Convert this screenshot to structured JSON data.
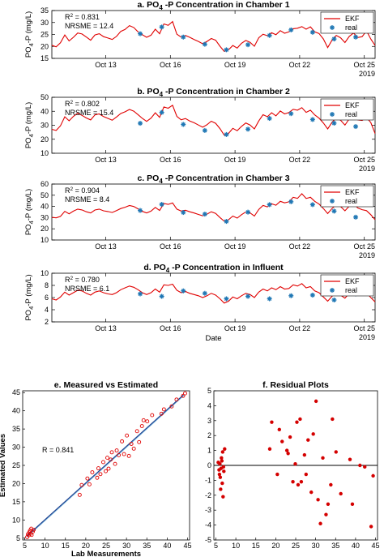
{
  "chart_data": [
    {
      "type": "line",
      "title_prefix": "a. PO",
      "title_sub": "4",
      "title_suffix": " -P Concentration in Chamber 1",
      "ylabel_prefix": "PO",
      "ylabel_sub": "4",
      "ylabel_suffix": "-P (mg/L)",
      "ylim": [
        15,
        35
      ],
      "yticks": [
        "15",
        "20",
        "25",
        "30",
        "35"
      ],
      "x_range_days": [
        10.5,
        25.5
      ],
      "x_tick_days": [
        13,
        16,
        19,
        22,
        25
      ],
      "xticks": [
        "Oct 13",
        "Oct 16",
        "Oct 19",
        "Oct 22",
        "Oct 25"
      ],
      "year_label": "2019",
      "r2_label": "R",
      "r2_sup": "2",
      "r2_text": " = 0.831",
      "error_label": "NRSME = 12.4",
      "legend": [
        "EKF",
        "real"
      ],
      "line_x": [
        10.5,
        10.7,
        10.9,
        11.1,
        11.3,
        11.5,
        11.7,
        11.9,
        12.1,
        12.3,
        12.5,
        12.7,
        12.9,
        13.1,
        13.3,
        13.5,
        13.7,
        13.9,
        14.1,
        14.3,
        14.5,
        14.7,
        14.9,
        15.1,
        15.3,
        15.5,
        15.7,
        15.9,
        16.1,
        16.3,
        16.5,
        16.7,
        16.9,
        17.1,
        17.3,
        17.5,
        17.7,
        17.9,
        18.1,
        18.3,
        18.5,
        18.7,
        18.9,
        19.1,
        19.3,
        19.5,
        19.7,
        19.9,
        20.1,
        20.3,
        20.5,
        20.7,
        20.9,
        21.1,
        21.3,
        21.5,
        21.7,
        21.9,
        22.1,
        22.3,
        22.5,
        22.7,
        22.9,
        23.1,
        23.3,
        23.5,
        23.7,
        23.9,
        24.1,
        24.3,
        24.5,
        24.7,
        24.9,
        25.1,
        25.3,
        25.5
      ],
      "line_y": [
        20.5,
        19.8,
        21.5,
        24.8,
        22.3,
        23.8,
        25.6,
        25.2,
        23.9,
        22.6,
        24.8,
        25.3,
        24.1,
        23.5,
        22.9,
        24.2,
        26.3,
        27.1,
        28.7,
        27.9,
        26.1,
        24.9,
        23.8,
        24.7,
        27.2,
        25.3,
        29.4,
        28.8,
        30.4,
        25.1,
        23.9,
        24.6,
        23.8,
        22.9,
        22.1,
        21.1,
        22.1,
        23.3,
        22.6,
        20.1,
        17.9,
        18.6,
        20.4,
        19.3,
        21.3,
        22.5,
        21.7,
        20.1,
        23.6,
        25.1,
        24.5,
        25.7,
        24.9,
        26.6,
        25.5,
        26.1,
        27.4,
        27.6,
        28.3,
        27.2,
        28.2,
        26.1,
        25.4,
        23.1,
        19.5,
        22.6,
        24.6,
        23.6,
        21.6,
        24.2,
        25.6,
        23.7,
        24.1,
        26.5,
        23.1,
        20.4
      ],
      "real_x": [
        14.6,
        15.6,
        16.6,
        17.6,
        18.6,
        19.6,
        20.6,
        21.6,
        22.6,
        23.6,
        24.6
      ],
      "real_y": [
        25.3,
        28.1,
        23.9,
        20.9,
        18.6,
        20.7,
        24.6,
        26.9,
        25.9,
        23.1,
        23.9
      ]
    },
    {
      "type": "line",
      "title_prefix": "b. PO",
      "title_sub": "4",
      "title_suffix": " -P Concentration in Chamber 2",
      "ylabel_prefix": "PO",
      "ylabel_sub": "4",
      "ylabel_suffix": "-P (mg/L)",
      "ylim": [
        10,
        50
      ],
      "yticks": [
        "10",
        "20",
        "30",
        "40",
        "50"
      ],
      "x_range_days": [
        10.5,
        25.5
      ],
      "x_tick_days": [
        13,
        16,
        19,
        22,
        25
      ],
      "xticks": [
        "Oct 13",
        "Oct 16",
        "Oct 19",
        "Oct 22",
        "Oct 25"
      ],
      "year_label": "2019",
      "r2_label": "R",
      "r2_sup": "2",
      "r2_text": " = 0.802",
      "error_label": "NRSME = 15.4",
      "legend": [
        "EKF",
        "real"
      ],
      "line_x": [
        10.5,
        10.7,
        10.9,
        11.1,
        11.3,
        11.5,
        11.7,
        11.9,
        12.1,
        12.3,
        12.5,
        12.7,
        12.9,
        13.1,
        13.3,
        13.5,
        13.7,
        13.9,
        14.1,
        14.3,
        14.5,
        14.7,
        14.9,
        15.1,
        15.3,
        15.5,
        15.7,
        15.9,
        16.1,
        16.3,
        16.5,
        16.7,
        16.9,
        17.1,
        17.3,
        17.5,
        17.7,
        17.9,
        18.1,
        18.3,
        18.5,
        18.7,
        18.9,
        19.1,
        19.3,
        19.5,
        19.7,
        19.9,
        20.1,
        20.3,
        20.5,
        20.7,
        20.9,
        21.1,
        21.3,
        21.5,
        21.7,
        21.9,
        22.1,
        22.3,
        22.5,
        22.7,
        22.9,
        23.1,
        23.3,
        23.5,
        23.7,
        23.9,
        24.1,
        24.3,
        24.5,
        24.7,
        24.9,
        25.1,
        25.3,
        25.5
      ],
      "line_y": [
        27.1,
        26.3,
        29.6,
        36.1,
        33.2,
        36.4,
        38.6,
        37.1,
        35.2,
        33.8,
        37.4,
        38.1,
        36.2,
        34.9,
        33.6,
        35.9,
        38.4,
        39.6,
        41.3,
        40.1,
        37.6,
        34.9,
        32.8,
        35.1,
        38.9,
        35.6,
        43.1,
        42.2,
        44.3,
        36.4,
        33.9,
        34.8,
        33.1,
        31.8,
        30.2,
        28.6,
        30.4,
        32.9,
        31.4,
        27.6,
        22.9,
        24.2,
        27.8,
        26.1,
        29.2,
        31.6,
        30.2,
        27.4,
        33.1,
        37.6,
        36.1,
        38.9,
        36.7,
        40.2,
        38.1,
        39.1,
        41.4,
        40.8,
        42.6,
        39.2,
        40.8,
        37.4,
        35.1,
        31.6,
        27.4,
        32.1,
        35.4,
        33.6,
        30.1,
        34.6,
        37.1,
        33.9,
        33.4,
        35.6,
        31.9,
        24.1
      ],
      "real_x": [
        14.6,
        15.6,
        16.6,
        17.6,
        18.6,
        19.6,
        20.6,
        21.6,
        22.6,
        23.6,
        24.6
      ],
      "real_y": [
        31.4,
        39.2,
        30.6,
        26.3,
        23.4,
        27.2,
        34.9,
        38.3,
        34.1,
        31.5,
        29.1
      ]
    },
    {
      "type": "line",
      "title_prefix": "c. PO",
      "title_sub": "4",
      "title_suffix": " -P Concentration in Chamber 3",
      "ylabel_prefix": "PO",
      "ylabel_sub": "4",
      "ylabel_suffix": "-P (mg/L)",
      "ylim": [
        10,
        60
      ],
      "yticks": [
        "10",
        "20",
        "30",
        "40",
        "50",
        "60"
      ],
      "x_range_days": [
        10.5,
        25.5
      ],
      "x_tick_days": [
        13,
        16,
        19,
        22,
        25
      ],
      "xticks": [
        "Oct 13",
        "Oct 16",
        "Oct 19",
        "Oct 22",
        "Oct 25"
      ],
      "year_label": "2019",
      "r2_label": "R",
      "r2_sup": "2",
      "r2_text": " = 0.904",
      "error_label": "NRSME = 8.4",
      "legend": [
        "EKF",
        "real"
      ],
      "line_x": [
        10.5,
        10.7,
        10.9,
        11.1,
        11.3,
        11.5,
        11.7,
        11.9,
        12.1,
        12.3,
        12.5,
        12.7,
        12.9,
        13.1,
        13.3,
        13.5,
        13.7,
        13.9,
        14.1,
        14.3,
        14.5,
        14.7,
        14.9,
        15.1,
        15.3,
        15.5,
        15.7,
        15.9,
        16.1,
        16.3,
        16.5,
        16.7,
        16.9,
        17.1,
        17.3,
        17.5,
        17.7,
        17.9,
        18.1,
        18.3,
        18.5,
        18.7,
        18.9,
        19.1,
        19.3,
        19.5,
        19.7,
        19.9,
        20.1,
        20.3,
        20.5,
        20.7,
        20.9,
        21.1,
        21.3,
        21.5,
        21.7,
        21.9,
        22.1,
        22.3,
        22.5,
        22.7,
        22.9,
        23.1,
        23.3,
        23.5,
        23.7,
        23.9,
        24.1,
        24.3,
        24.5,
        24.7,
        24.9,
        25.1,
        25.3,
        25.5
      ],
      "line_y": [
        30.2,
        29.8,
        31.1,
        35.6,
        33.4,
        35.8,
        37.6,
        36.9,
        35.2,
        34.1,
        36.8,
        37.6,
        36.1,
        35.4,
        34.6,
        36.2,
        38.1,
        39.3,
        40.8,
        39.9,
        37.8,
        35.6,
        34.2,
        35.8,
        39.1,
        36.4,
        42.6,
        41.8,
        43.1,
        37.6,
        35.9,
        36.6,
        35.2,
        34.1,
        32.8,
        31.6,
        33.1,
        35.2,
        33.8,
        30.1,
        26.8,
        28.1,
        31.4,
        29.6,
        32.6,
        35.1,
        34.2,
        31.4,
        37.3,
        40.9,
        39.6,
        42.3,
        41.1,
        44.6,
        43.2,
        44.1,
        48.1,
        47.2,
        51.4,
        47.1,
        48.2,
        44.6,
        42.1,
        38.1,
        33.6,
        38.1,
        41.6,
        39.9,
        36.1,
        40.2,
        42.3,
        38.6,
        37.1,
        36.2,
        32.6,
        28.1
      ],
      "real_x": [
        14.6,
        15.6,
        16.6,
        17.6,
        18.6,
        19.6,
        20.6,
        21.6,
        22.6,
        23.6,
        24.6
      ],
      "real_y": [
        36.4,
        41.8,
        34.6,
        33.1,
        26.6,
        34.9,
        41.6,
        44.2,
        41.6,
        35.8,
        30.4
      ]
    },
    {
      "type": "line",
      "title_prefix": "d. PO",
      "title_sub": "4",
      "title_suffix": " -P Concentration in Influent",
      "ylabel_prefix": "PO",
      "ylabel_sub": "4",
      "ylabel_suffix": "-P (mg/L)",
      "ylim": [
        2,
        10
      ],
      "yticks": [
        "2",
        "4",
        "6",
        "8",
        "10"
      ],
      "x_range_days": [
        10.5,
        25.5
      ],
      "x_tick_days": [
        13,
        16,
        19,
        22,
        25
      ],
      "xticks": [
        "Oct 13",
        "Oct 16",
        "Oct 19",
        "Oct 22",
        "Oct 25"
      ],
      "year_label": "2019",
      "xlabel": "Date",
      "r2_label": "R",
      "r2_sup": "2",
      "r2_text": " = 0.780",
      "error_label": "NRSME = 6.1",
      "legend": [
        "EKF",
        "real"
      ],
      "line_x": [
        10.5,
        10.7,
        10.9,
        11.1,
        11.3,
        11.5,
        11.7,
        11.9,
        12.1,
        12.3,
        12.5,
        12.7,
        12.9,
        13.1,
        13.3,
        13.5,
        13.7,
        13.9,
        14.1,
        14.3,
        14.5,
        14.7,
        14.9,
        15.1,
        15.3,
        15.5,
        15.7,
        15.9,
        16.1,
        16.3,
        16.5,
        16.7,
        16.9,
        17.1,
        17.3,
        17.5,
        17.7,
        17.9,
        18.1,
        18.3,
        18.5,
        18.7,
        18.9,
        19.1,
        19.3,
        19.5,
        19.7,
        19.9,
        20.1,
        20.3,
        20.5,
        20.7,
        20.9,
        21.1,
        21.3,
        21.5,
        21.7,
        21.9,
        22.1,
        22.3,
        22.5,
        22.7,
        22.9,
        23.1,
        23.3,
        23.5,
        23.7,
        23.9,
        24.1,
        24.3,
        24.5,
        24.7,
        24.9,
        25.1,
        25.3,
        25.5
      ],
      "line_y": [
        5.8,
        5.6,
        6.1,
        6.9,
        6.4,
        6.8,
        7.2,
        7.1,
        6.7,
        6.4,
        6.9,
        7.1,
        6.8,
        6.6,
        6.5,
        6.8,
        7.3,
        7.6,
        7.9,
        7.7,
        7.3,
        6.8,
        6.5,
        6.8,
        7.4,
        6.9,
        8.1,
        8.0,
        8.2,
        7.2,
        6.8,
        7.0,
        6.7,
        6.5,
        6.3,
        6.0,
        6.3,
        6.7,
        6.4,
        5.8,
        5.1,
        5.4,
        6.1,
        5.8,
        6.3,
        6.7,
        6.5,
        6.0,
        6.9,
        7.4,
        7.1,
        7.6,
        7.3,
        7.8,
        7.4,
        7.5,
        8.1,
        7.9,
        8.3,
        7.6,
        7.8,
        7.1,
        6.8,
        6.1,
        5.4,
        6.2,
        6.8,
        6.4,
        5.9,
        6.7,
        7.1,
        6.6,
        6.5,
        6.8,
        6.0,
        5.3
      ],
      "real_x": [
        14.6,
        15.6,
        16.6,
        17.6,
        18.6,
        19.6,
        20.6,
        21.6,
        22.6,
        23.6,
        24.6
      ],
      "real_y": [
        6.6,
        6.2,
        7.1,
        6.7,
        5.8,
        6.2,
        5.8,
        6.3,
        6.4,
        5.6,
        6.6
      ]
    },
    {
      "type": "scatter",
      "title": "e. Measured vs Estimated",
      "xlabel": "Lab Measurements",
      "ylabel": "Estimated Values",
      "xlim": [
        4.5,
        45.5
      ],
      "ylim": [
        4.5,
        45.5
      ],
      "xticks": [
        5,
        10,
        15,
        20,
        25,
        30,
        35,
        40,
        45
      ],
      "yticks": [
        5,
        10,
        15,
        20,
        25,
        30,
        35,
        40,
        45
      ],
      "annotation": "R = 0.841",
      "points_x": [
        5.6,
        5.8,
        6.0,
        6.1,
        6.3,
        6.4,
        6.6,
        6.7,
        7.0,
        7.2,
        18.5,
        19.0,
        20.4,
        20.9,
        21.6,
        22.8,
        23.1,
        23.6,
        24.3,
        24.9,
        25.3,
        25.6,
        26.1,
        26.4,
        27.2,
        27.6,
        28.1,
        28.9,
        29.4,
        30.1,
        30.6,
        31.2,
        31.8,
        32.6,
        33.1,
        33.8,
        34.2,
        35.1,
        36.3,
        38.6,
        39.2,
        41.1,
        42.3,
        43.9,
        44.4
      ],
      "points_y": [
        5.3,
        6.1,
        5.8,
        6.6,
        7.1,
        6.2,
        7.6,
        5.9,
        6.8,
        7.3,
        16.9,
        19.6,
        21.4,
        19.8,
        23.1,
        21.6,
        24.2,
        22.6,
        25.9,
        23.4,
        27.1,
        24.1,
        26.6,
        28.6,
        25.4,
        29.1,
        27.8,
        31.6,
        28.1,
        33.2,
        27.6,
        30.9,
        29.6,
        34.4,
        31.4,
        35.8,
        37.4,
        37.1,
        38.8,
        39.2,
        40.4,
        41.2,
        43.1,
        44.1,
        44.8
      ],
      "fit_line": [
        [
          5.5,
          5.5
        ],
        [
          44.0,
          44.3
        ]
      ]
    },
    {
      "type": "scatter",
      "title": "f. Residual Plots",
      "xlim": [
        4.5,
        45.5
      ],
      "ylim": [
        -5,
        5
      ],
      "xticks": [
        5,
        10,
        15,
        20,
        25,
        30,
        35,
        40,
        45
      ],
      "xtick_labels": [
        "5",
        "10",
        "15",
        "20",
        "25",
        "30",
        "35",
        "40",
        "45"
      ],
      "yticks": [
        -5,
        -4,
        -3,
        -2,
        -1,
        0,
        1,
        2,
        3,
        4,
        5
      ],
      "points_x": [
        5.6,
        5.8,
        6.0,
        6.1,
        6.3,
        6.4,
        6.6,
        6.7,
        7.0,
        7.2,
        5.9,
        6.2,
        6.5,
        6.8,
        6.9,
        18.5,
        19.0,
        20.4,
        20.9,
        21.6,
        22.8,
        23.1,
        23.6,
        24.3,
        24.9,
        25.3,
        25.6,
        26.1,
        26.4,
        27.2,
        27.6,
        28.1,
        28.9,
        29.4,
        30.1,
        30.6,
        31.2,
        31.8,
        32.6,
        33.1,
        33.8,
        34.2,
        35.1,
        36.3,
        38.6,
        39.2,
        41.1,
        42.3,
        43.9,
        44.4
      ],
      "points_y": [
        0.2,
        -0.3,
        0.1,
        -0.8,
        -0.2,
        0.5,
        -1.2,
        0.9,
        -0.4,
        1.1,
        -0.6,
        -1.6,
        0.3,
        -2.1,
        -0.1,
        1.1,
        2.9,
        -0.6,
        2.4,
        1.6,
        1.0,
        0.8,
        1.9,
        -1.1,
        0.1,
        2.9,
        -1.3,
        3.1,
        -1.1,
        0.7,
        -0.6,
        1.7,
        -1.8,
        2.1,
        4.3,
        -2.3,
        -3.9,
        0.5,
        -3.3,
        -2.6,
        -1.3,
        3.1,
        0.9,
        -1.9,
        0.4,
        -2.6,
        0.0,
        -0.1,
        -4.1,
        -0.7
      ],
      "zero_line": 0
    }
  ]
}
